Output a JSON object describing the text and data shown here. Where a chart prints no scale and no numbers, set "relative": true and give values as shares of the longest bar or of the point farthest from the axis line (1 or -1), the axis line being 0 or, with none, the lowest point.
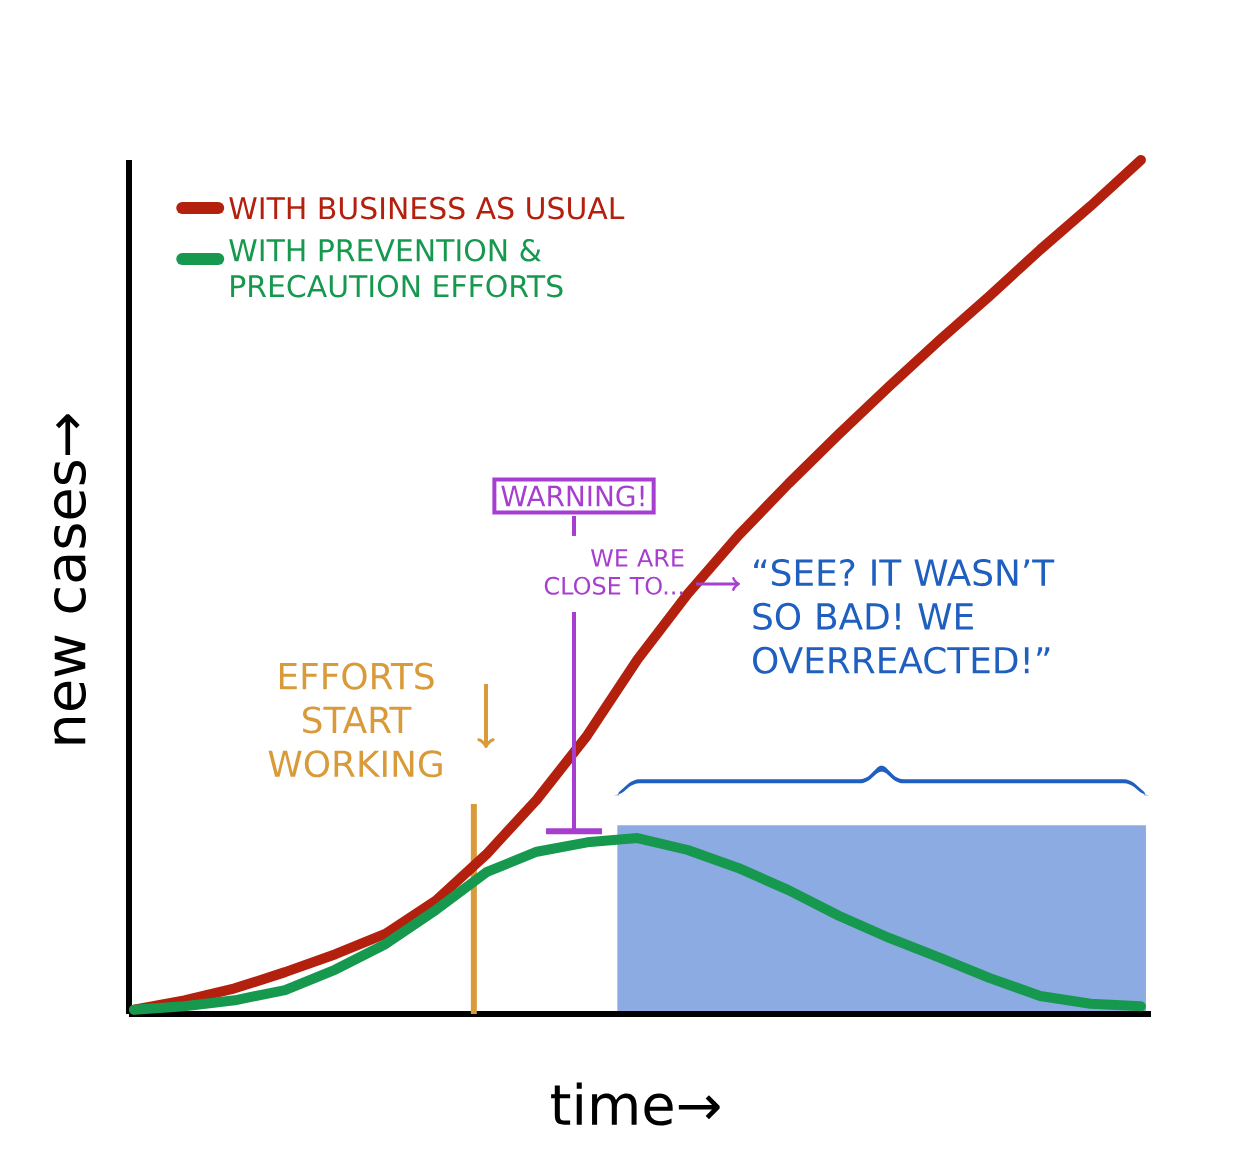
{
  "chart_data": {
    "type": "line",
    "relative": true,
    "xlabel": "time→",
    "ylabel": "new cases→",
    "categories": [
      null,
      null,
      null,
      null,
      null,
      null,
      null,
      null,
      null,
      null,
      null,
      null,
      null,
      null,
      null,
      null,
      null,
      null,
      null,
      null,
      null
    ],
    "series": [
      {
        "name": "WITH BUSINESS AS USUAL",
        "color": "#b3200e",
        "values": [
          0.005,
          0.016,
          0.03,
          0.049,
          0.07,
          0.094,
          0.133,
          0.187,
          0.251,
          0.326,
          0.415,
          0.492,
          0.56,
          0.621,
          0.679,
          0.735,
          0.789,
          0.841,
          0.895,
          0.946,
          1
        ]
      },
      {
        "name": "WITH PREVENTION & PRECAUTION EFFORTS",
        "color": "#16994f",
        "values": [
          0.005,
          0.009,
          0.016,
          0.028,
          0.052,
          0.082,
          0.122,
          0.166,
          0.19,
          0.201,
          0.206,
          0.192,
          0.171,
          0.145,
          0.115,
          0.089,
          0.066,
          0.042,
          0.021,
          0.012,
          0.009
        ]
      }
    ],
    "legend": "top left",
    "marker": "none",
    "line_style": "solid",
    "annotations": [
      "EFFORTS START WORKING",
      "“SEE? IT WASN’T SO BAD! WE OVERREACTED!”",
      "WARNING!",
      "WE ARE CLOSE TO..."
    ]
  }
}
